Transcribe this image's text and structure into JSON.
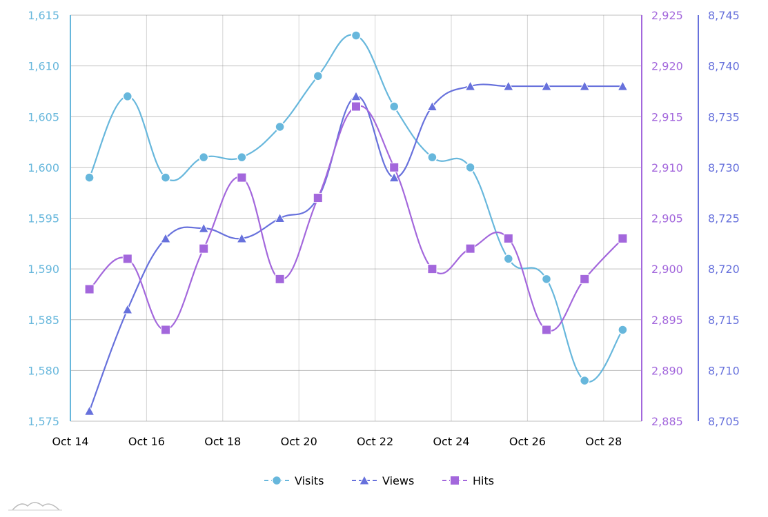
{
  "chart_data": {
    "type": "line",
    "x_start": "2019-10-14",
    "x_dates": [
      "2019-10-14",
      "2019-10-15",
      "2019-10-16",
      "2019-10-17",
      "2019-10-18",
      "2019-10-19",
      "2019-10-20",
      "2019-10-21",
      "2019-10-22",
      "2019-10-23",
      "2019-10-24",
      "2019-10-25",
      "2019-10-26",
      "2019-10-27",
      "2019-10-28"
    ],
    "x_tick_labels": [
      "Oct 14",
      "Oct 16",
      "Oct 18",
      "Oct 20",
      "Oct 22",
      "Oct 24",
      "Oct 26",
      "Oct 28"
    ],
    "axes": [
      {
        "id": "visits",
        "position": "left",
        "min": 1575,
        "max": 1615,
        "step": 5,
        "color": "#67b7dc",
        "tick_labels": [
          "1,575",
          "1,580",
          "1,585",
          "1,590",
          "1,595",
          "1,600",
          "1,605",
          "1,610",
          "1,615"
        ]
      },
      {
        "id": "hits",
        "position": "right",
        "min": 2885,
        "max": 2925,
        "step": 5,
        "color": "#a367dc",
        "tick_labels": [
          "2,885",
          "2,890",
          "2,895",
          "2,900",
          "2,905",
          "2,910",
          "2,915",
          "2,920",
          "2,925"
        ]
      },
      {
        "id": "views",
        "position": "right-outer",
        "min": 8705,
        "max": 8745,
        "step": 5,
        "color": "#6771dc",
        "tick_labels": [
          "8,705",
          "8,710",
          "8,715",
          "8,720",
          "8,725",
          "8,730",
          "8,735",
          "8,740",
          "8,745"
        ]
      }
    ],
    "series": [
      {
        "name": "Visits",
        "axis": "visits",
        "color": "#67b7dc",
        "marker": "circle",
        "values": [
          1599,
          1607,
          1599,
          1601,
          1601,
          1604,
          1609,
          1613,
          1606,
          1601,
          1600,
          1591,
          1589,
          1579,
          1584
        ]
      },
      {
        "name": "Views",
        "axis": "views",
        "color": "#6771dc",
        "marker": "triangle",
        "values": [
          8706,
          8716,
          8723,
          8724,
          8723,
          8725,
          8727,
          8737,
          8729,
          8736,
          8738,
          8738,
          8738,
          8738,
          8738
        ]
      },
      {
        "name": "Hits",
        "axis": "hits",
        "color": "#a367dc",
        "marker": "square",
        "values": [
          2898,
          2901,
          2894,
          2902,
          2909,
          2899,
          2907,
          2916,
          2910,
          2900,
          2902,
          2903,
          2894,
          2899,
          2903
        ]
      }
    ],
    "grid": true,
    "legend_position": "bottom-center"
  }
}
